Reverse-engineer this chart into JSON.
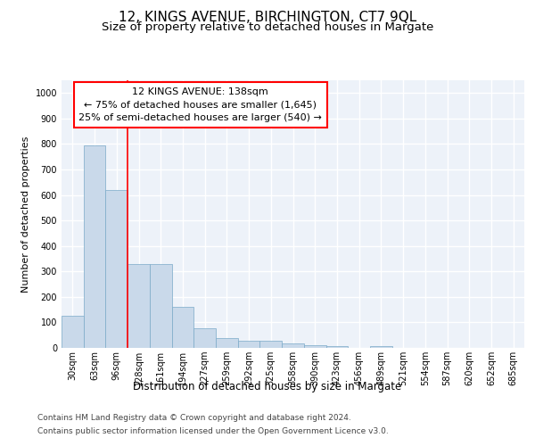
{
  "title": "12, KINGS AVENUE, BIRCHINGTON, CT7 9QL",
  "subtitle": "Size of property relative to detached houses in Margate",
  "xlabel": "Distribution of detached houses by size in Margate",
  "ylabel": "Number of detached properties",
  "bar_color": "#c9d9ea",
  "bar_edge_color": "#7aaac8",
  "bar_heights": [
    125,
    795,
    620,
    328,
    328,
    162,
    78,
    40,
    28,
    28,
    17,
    10,
    8,
    0,
    8,
    0,
    0,
    0,
    0,
    0,
    0
  ],
  "categories": [
    "30sqm",
    "63sqm",
    "96sqm",
    "128sqm",
    "161sqm",
    "194sqm",
    "227sqm",
    "259sqm",
    "292sqm",
    "325sqm",
    "358sqm",
    "390sqm",
    "423sqm",
    "456sqm",
    "489sqm",
    "521sqm",
    "554sqm",
    "587sqm",
    "620sqm",
    "652sqm",
    "685sqm"
  ],
  "ylim": [
    0,
    1050
  ],
  "yticks": [
    0,
    100,
    200,
    300,
    400,
    500,
    600,
    700,
    800,
    900,
    1000
  ],
  "property_label": "12 KINGS AVENUE: 138sqm",
  "annotation_line1": "← 75% of detached houses are smaller (1,645)",
  "annotation_line2": "25% of semi-detached houses are larger (540) →",
  "footnote1": "Contains HM Land Registry data © Crown copyright and database right 2024.",
  "footnote2": "Contains public sector information licensed under the Open Government Licence v3.0.",
  "background_color": "#edf2f9",
  "grid_color": "#ffffff",
  "title_fontsize": 11,
  "subtitle_fontsize": 9.5,
  "xlabel_fontsize": 8.5,
  "ylabel_fontsize": 8,
  "tick_fontsize": 7,
  "annotation_fontsize": 8,
  "footnote_fontsize": 6.5,
  "red_line_bar_index": 3
}
